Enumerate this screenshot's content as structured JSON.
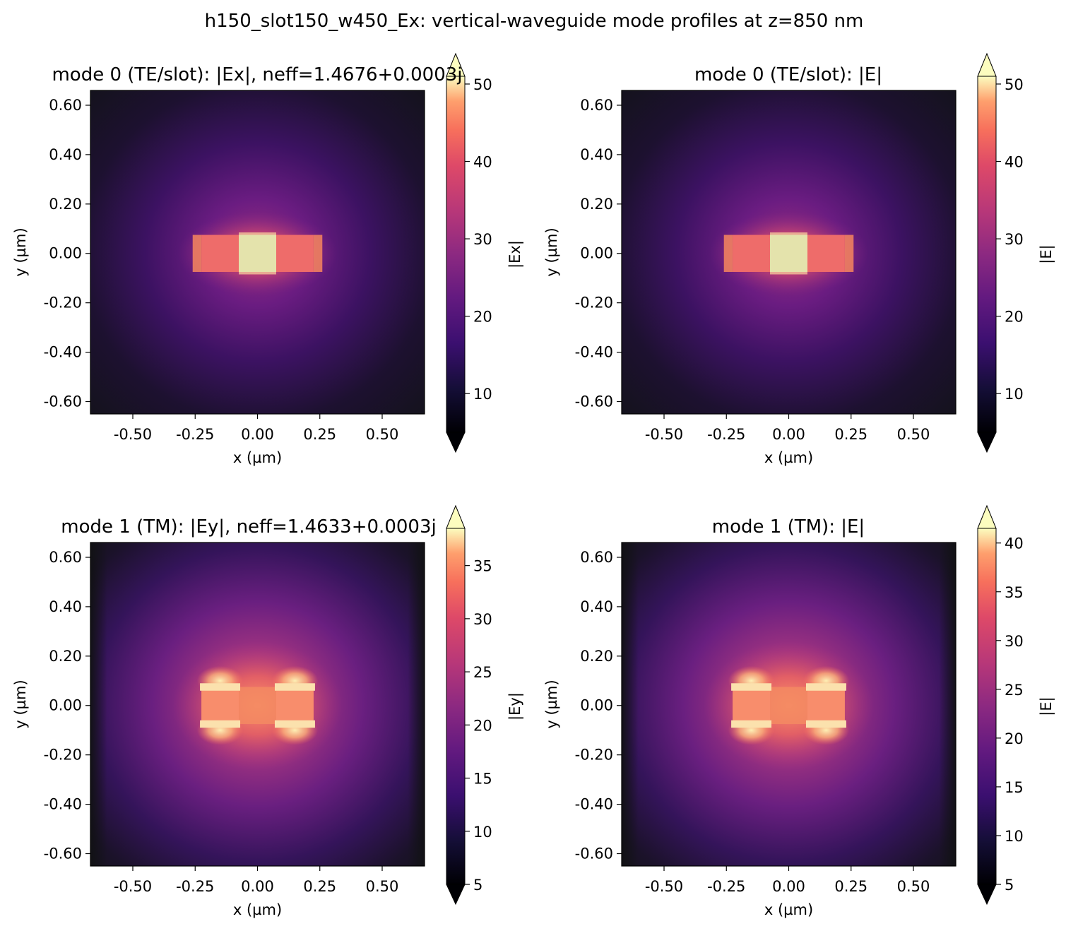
{
  "figure": {
    "title": "h150_slot150_w450_Ex: vertical-waveguide mode profiles at z=850 nm",
    "colormap": "magma"
  },
  "chart_data": [
    {
      "type": "heatmap",
      "title": "mode 0 (TE/slot): |Ex|, neff=1.4676+0.0003j",
      "xlabel": "x (µm)",
      "ylabel": "y (µm)",
      "xlim": [
        -0.67,
        0.67
      ],
      "ylim": [
        -0.65,
        0.66
      ],
      "xticks": [
        "-0.50",
        "-0.25",
        "0.00",
        "0.25",
        "0.50"
      ],
      "yticks": [
        "0.60",
        "0.40",
        "0.20",
        "0.00",
        "-0.20",
        "-0.40",
        "-0.60"
      ],
      "colorbar": {
        "label": "|Ex|",
        "ticks": [
          "10",
          "20",
          "30",
          "40",
          "50"
        ],
        "range": [
          5,
          51
        ]
      },
      "mode": "te"
    },
    {
      "type": "heatmap",
      "title": "mode 0 (TE/slot): |E|",
      "xlabel": "x (µm)",
      "ylabel": "y (µm)",
      "xlim": [
        -0.67,
        0.67
      ],
      "ylim": [
        -0.65,
        0.66
      ],
      "xticks": [
        "-0.50",
        "-0.25",
        "0.00",
        "0.25",
        "0.50"
      ],
      "yticks": [
        "0.60",
        "0.40",
        "0.20",
        "0.00",
        "-0.20",
        "-0.40",
        "-0.60"
      ],
      "colorbar": {
        "label": "|E|",
        "ticks": [
          "10",
          "20",
          "30",
          "40",
          "50"
        ],
        "range": [
          5,
          51
        ]
      },
      "mode": "te"
    },
    {
      "type": "heatmap",
      "title": "mode 1 (TM): |Ey|, neff=1.4633+0.0003j",
      "xlabel": "x (µm)",
      "ylabel": "y (µm)",
      "xlim": [
        -0.67,
        0.67
      ],
      "ylim": [
        -0.65,
        0.66
      ],
      "xticks": [
        "-0.50",
        "-0.25",
        "0.00",
        "0.25",
        "0.50"
      ],
      "yticks": [
        "0.60",
        "0.40",
        "0.20",
        "0.00",
        "-0.20",
        "-0.40",
        "-0.60"
      ],
      "colorbar": {
        "label": "|Ey|",
        "ticks": [
          "5",
          "10",
          "15",
          "20",
          "25",
          "30",
          "35"
        ],
        "range": [
          5,
          38.5
        ]
      },
      "mode": "tm"
    },
    {
      "type": "heatmap",
      "title": "mode 1 (TM): |E|",
      "xlabel": "x (µm)",
      "ylabel": "y (µm)",
      "xlim": [
        -0.67,
        0.67
      ],
      "ylim": [
        -0.65,
        0.66
      ],
      "xticks": [
        "-0.50",
        "-0.25",
        "0.00",
        "0.25",
        "0.50"
      ],
      "yticks": [
        "0.60",
        "0.40",
        "0.20",
        "0.00",
        "-0.20",
        "-0.40",
        "-0.60"
      ],
      "colorbar": {
        "label": "|E|",
        "ticks": [
          "5",
          "10",
          "15",
          "20",
          "25",
          "30",
          "35",
          "40"
        ],
        "range": [
          5,
          41.5
        ]
      },
      "mode": "tm"
    }
  ]
}
